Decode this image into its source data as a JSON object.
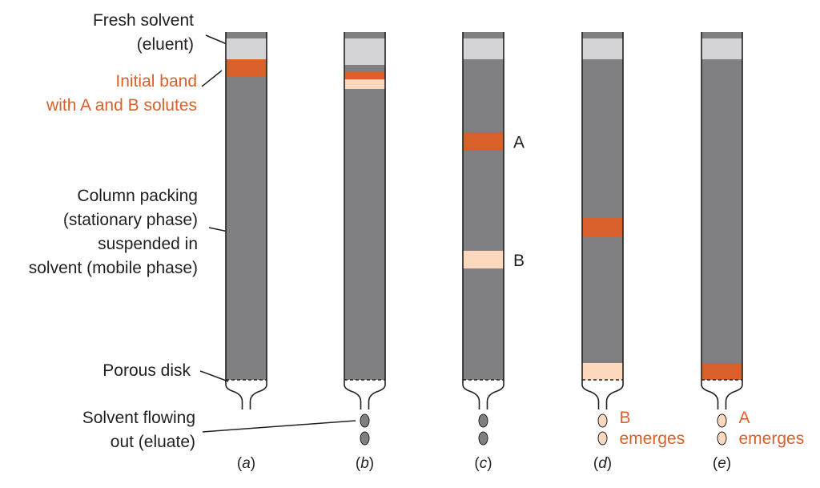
{
  "labels": {
    "fresh_solvent": [
      "Fresh solvent",
      "(eluent)"
    ],
    "initial_band": [
      "Initial band",
      "with A and B solutes"
    ],
    "column_packing": [
      "Column packing",
      "(stationary phase)",
      "suspended in",
      "solvent (mobile phase)"
    ],
    "porous_disk": "Porous disk",
    "solvent_out": [
      "Solvent flowing",
      "out (eluate)"
    ]
  },
  "columns": [
    {
      "id": "a",
      "caption_letter": "a",
      "bands": [
        {
          "solute": "AB",
          "pos": "top"
        }
      ],
      "drops": "none",
      "side_labels": [],
      "emerge": null
    },
    {
      "id": "b",
      "caption_letter": "b",
      "bands": [
        {
          "solute": "A",
          "pos": "top"
        },
        {
          "solute": "B",
          "pos": "top"
        }
      ],
      "drops": "grey",
      "side_labels": [],
      "emerge": null
    },
    {
      "id": "c",
      "caption_letter": "c",
      "bands": [
        {
          "solute": "A"
        },
        {
          "solute": "B"
        }
      ],
      "drops": "grey",
      "side_labels": [
        "A",
        "B"
      ],
      "emerge": null
    },
    {
      "id": "d",
      "caption_letter": "d",
      "bands": [
        {
          "solute": "A"
        },
        {
          "solute": "B",
          "pos": "bottom"
        }
      ],
      "drops": "peach",
      "side_labels": [],
      "emerge": [
        "B",
        "emerges"
      ]
    },
    {
      "id": "e",
      "caption_letter": "e",
      "bands": [
        {
          "solute": "A",
          "pos": "bottom"
        }
      ],
      "drops": "peach",
      "side_labels": [],
      "emerge": [
        "A",
        "emerges"
      ]
    }
  ],
  "colors": {
    "packing": "#808082",
    "solvent": "#d4d4d6",
    "solute_a": "#d9602a",
    "solute_b": "#fcd9bd",
    "outline": "#231f20",
    "label_text": "#231f20",
    "highlight_text": "#d9602a"
  }
}
